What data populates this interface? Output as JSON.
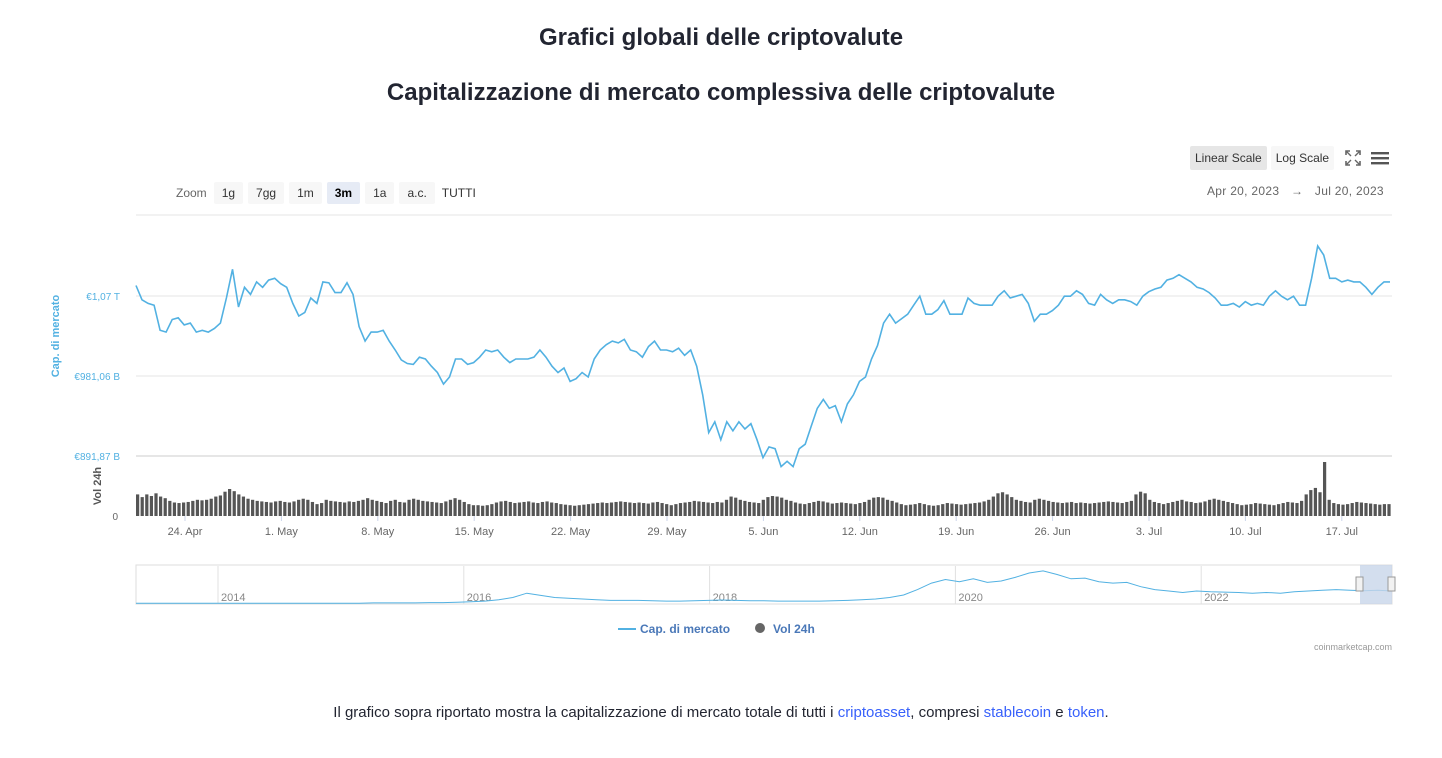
{
  "page": {
    "heading": "Grafici globali delle criptovalute",
    "subheading": "Capitalizzazione di mercato complessiva delle criptovalute",
    "footer": {
      "before": "Il grafico sopra riportato mostra la capitalizzazione di mercato totale di tutti i ",
      "link1": "criptoasset",
      "mid1": ", compresi ",
      "link2": "stablecoin",
      "mid2": " e ",
      "link3": "token",
      "after": "."
    }
  },
  "toolbar": {
    "scale_buttons": [
      "Linear Scale",
      "Log Scale"
    ],
    "active_scale": "Linear Scale",
    "fullscreen_icon": "fullscreen-icon",
    "menu_icon": "hamburger-menu-icon",
    "zoom_label": "Zoom",
    "zoom_buttons": [
      "1g",
      "7gg",
      "1m",
      "3m",
      "1a",
      "a.c.",
      "TUTTI"
    ],
    "active_zoom": "3m",
    "range_from": "Apr 20, 2023",
    "range_arrow": "→",
    "range_to": "Jul 20, 2023"
  },
  "chart_data": {
    "type": "line",
    "y_axis_left_label": "Cap. di mercato",
    "y_axis_volume_label": "Vol 24h",
    "y_ticks": [
      "€1,07 T",
      "€981,06 B",
      "€891,87 B"
    ],
    "y_tick_values": [
      1070.25,
      981.06,
      891.87
    ],
    "volume_ticks": [
      "0"
    ],
    "x_tick_labels": [
      "24. Apr",
      "1. May",
      "8. May",
      "15. May",
      "22. May",
      "29. May",
      "5. Jun",
      "12. Jun",
      "19. Jun",
      "26. Jun",
      "3. Jul",
      "10. Jul",
      "17. Jul"
    ],
    "navigator_years": [
      "2014",
      "2016",
      "2018",
      "2020",
      "2022"
    ],
    "legend": [
      {
        "name": "Cap. di mercato",
        "color": "#52b1e2",
        "symbol": "line"
      },
      {
        "name": "Vol 24h",
        "color": "#666666",
        "symbol": "circle"
      }
    ],
    "credit": "coinmarketcap.com",
    "colors": {
      "line": "#52b1e2",
      "volume": "#555555",
      "grid": "#e6e6e6",
      "axis_label": "#52b1e2"
    },
    "market_cap_billion_eur": [
      1082,
      1066,
      1062,
      1060,
      1032,
      1030,
      1044,
      1046,
      1038,
      1040,
      1030,
      1032,
      1030,
      1034,
      1040,
      1068,
      1100,
      1058,
      1080,
      1072,
      1086,
      1080,
      1088,
      1090,
      1084,
      1080,
      1062,
      1048,
      1052,
      1068,
      1062,
      1086,
      1085,
      1074,
      1074,
      1085,
      1072,
      1036,
      1020,
      1030,
      1030,
      1032,
      1020,
      1010,
      999,
      995,
      994,
      1002,
      1000,
      992,
      985,
      972,
      980,
      1000,
      1000,
      994,
      996,
      1002,
      1010,
      1008,
      1010,
      1002,
      996,
      1000,
      1000,
      1000,
      1002,
      1010,
      1002,
      992,
      985,
      990,
      975,
      978,
      985,
      980,
      1000,
      1010,
      1016,
      1020,
      1018,
      1022,
      1010,
      1008,
      1002,
      1014,
      1020,
      1010,
      1010,
      1008,
      1012,
      1004,
      1010,
      992,
      960,
      918,
      930,
      910,
      930,
      920,
      930,
      922,
      928,
      910,
      890,
      902,
      900,
      880,
      886,
      880,
      900,
      905,
      925,
      945,
      955,
      945,
      948,
      930,
      950,
      960,
      975,
      980,
      1000,
      1015,
      1040,
      1050,
      1040,
      1045,
      1050,
      1060,
      1070,
      1050,
      1050,
      1055,
      1065,
      1050,
      1050,
      1050,
      1068,
      1062,
      1060,
      1060,
      1060,
      1070,
      1076,
      1068,
      1070,
      1072,
      1062,
      1042,
      1050,
      1050,
      1054,
      1060,
      1070,
      1070,
      1076,
      1072,
      1062,
      1060,
      1072,
      1066,
      1062,
      1066,
      1066,
      1064,
      1060,
      1070,
      1075,
      1078,
      1080,
      1088,
      1090,
      1094,
      1090,
      1086,
      1080,
      1078,
      1074,
      1068,
      1060,
      1060,
      1062,
      1058,
      1064,
      1060,
      1062,
      1060,
      1070,
      1076,
      1070,
      1066,
      1070,
      1060,
      1060,
      1090,
      1126,
      1116,
      1090,
      1090,
      1086,
      1088,
      1086,
      1086,
      1080,
      1072,
      1080,
      1086,
      1086
    ],
    "volume_relative": [
      0.4,
      0.35,
      0.4,
      0.37,
      0.42,
      0.36,
      0.33,
      0.28,
      0.25,
      0.24,
      0.25,
      0.26,
      0.28,
      0.3,
      0.29,
      0.3,
      0.32,
      0.36,
      0.38,
      0.45,
      0.5,
      0.46,
      0.4,
      0.36,
      0.32,
      0.3,
      0.28,
      0.27,
      0.26,
      0.25,
      0.27,
      0.28,
      0.26,
      0.25,
      0.27,
      0.3,
      0.32,
      0.3,
      0.26,
      0.22,
      0.24,
      0.3,
      0.28,
      0.27,
      0.26,
      0.25,
      0.27,
      0.26,
      0.28,
      0.3,
      0.33,
      0.3,
      0.28,
      0.26,
      0.24,
      0.28,
      0.3,
      0.26,
      0.25,
      0.3,
      0.32,
      0.3,
      0.28,
      0.27,
      0.26,
      0.25,
      0.24,
      0.27,
      0.3,
      0.33,
      0.3,
      0.26,
      0.22,
      0.2,
      0.2,
      0.19,
      0.2,
      0.22,
      0.25,
      0.27,
      0.28,
      0.26,
      0.24,
      0.25,
      0.26,
      0.27,
      0.25,
      0.24,
      0.26,
      0.27,
      0.25,
      0.24,
      0.22,
      0.21,
      0.2,
      0.19,
      0.2,
      0.21,
      0.22,
      0.23,
      0.24,
      0.25,
      0.24,
      0.25,
      0.26,
      0.27,
      0.26,
      0.25,
      0.24,
      0.25,
      0.24,
      0.23,
      0.25,
      0.26,
      0.24,
      0.22,
      0.2,
      0.22,
      0.24,
      0.25,
      0.26,
      0.28,
      0.27,
      0.26,
      0.25,
      0.24,
      0.26,
      0.25,
      0.3,
      0.36,
      0.34,
      0.3,
      0.28,
      0.26,
      0.25,
      0.24,
      0.3,
      0.35,
      0.37,
      0.36,
      0.34,
      0.3,
      0.28,
      0.25,
      0.23,
      0.22,
      0.24,
      0.26,
      0.28,
      0.27,
      0.25,
      0.23,
      0.24,
      0.25,
      0.24,
      0.23,
      0.22,
      0.24,
      0.26,
      0.3,
      0.34,
      0.35,
      0.34,
      0.3,
      0.28,
      0.25,
      0.22,
      0.2,
      0.21,
      0.22,
      0.24,
      0.22,
      0.2,
      0.19,
      0.2,
      0.22,
      0.24,
      0.23,
      0.22,
      0.21,
      0.22,
      0.23,
      0.24,
      0.25,
      0.27,
      0.3,
      0.36,
      0.42,
      0.44,
      0.4,
      0.35,
      0.3,
      0.28,
      0.26,
      0.25,
      0.3,
      0.32,
      0.3,
      0.28,
      0.26,
      0.25,
      0.24,
      0.25,
      0.26,
      0.24,
      0.25,
      0.24,
      0.23,
      0.24,
      0.25,
      0.26,
      0.27,
      0.26,
      0.25,
      0.24,
      0.26,
      0.28,
      0.4,
      0.45,
      0.42,
      0.3,
      0.26,
      0.24,
      0.22,
      0.24,
      0.26,
      0.28,
      0.3,
      0.27,
      0.26,
      0.24,
      0.25,
      0.27,
      0.3,
      0.32,
      0.3,
      0.28,
      0.26,
      0.24,
      0.22,
      0.2,
      0.21,
      0.22,
      0.24,
      0.23,
      0.22,
      0.21,
      0.2,
      0.22,
      0.24,
      0.26,
      0.25,
      0.24,
      0.28,
      0.4,
      0.48,
      0.52,
      0.44,
      1.0,
      0.3,
      0.24,
      0.22,
      0.21,
      0.22,
      0.24,
      0.26,
      0.25,
      0.24,
      0.23,
      0.22,
      0.21,
      0.22,
      0.22
    ],
    "navigator_relative": [
      0.02,
      0.02,
      0.02,
      0.02,
      0.02,
      0.02,
      0.02,
      0.02,
      0.02,
      0.02,
      0.02,
      0.02,
      0.02,
      0.02,
      0.02,
      0.02,
      0.02,
      0.03,
      0.03,
      0.03,
      0.03,
      0.04,
      0.04,
      0.05,
      0.06,
      0.08,
      0.12,
      0.18,
      0.3,
      0.24,
      0.18,
      0.16,
      0.14,
      0.12,
      0.1,
      0.1,
      0.1,
      0.09,
      0.08,
      0.08,
      0.09,
      0.1,
      0.11,
      0.1,
      0.09,
      0.09,
      0.08,
      0.08,
      0.08,
      0.08,
      0.09,
      0.1,
      0.12,
      0.14,
      0.18,
      0.25,
      0.4,
      0.58,
      0.68,
      0.62,
      0.7,
      0.6,
      0.64,
      0.74,
      0.86,
      0.92,
      0.82,
      0.7,
      0.72,
      0.62,
      0.58,
      0.6,
      0.48,
      0.4,
      0.36,
      0.32,
      0.36,
      0.34,
      0.33,
      0.32,
      0.3,
      0.32,
      0.3,
      0.34,
      0.36,
      0.38,
      0.4,
      0.38,
      0.37,
      0.38,
      0.36
    ]
  }
}
